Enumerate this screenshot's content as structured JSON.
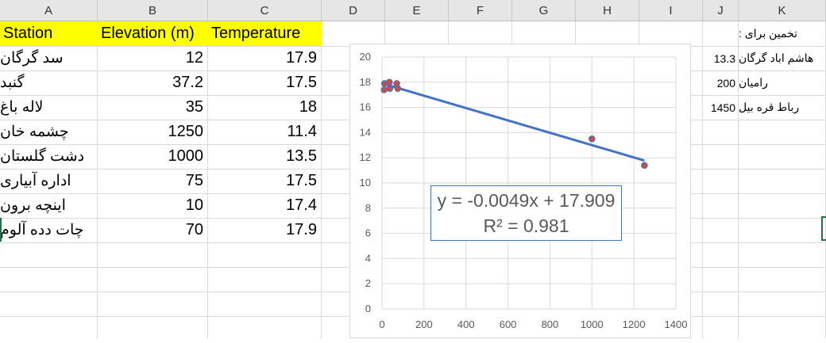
{
  "columns": [
    "A",
    "B",
    "C",
    "D",
    "E",
    "F",
    "G",
    "H",
    "I",
    "J",
    "K"
  ],
  "headers": {
    "station": "Station",
    "elevation": "Elevation (m)",
    "temperature": "Temperature"
  },
  "rows": [
    {
      "station": "سد گرگان",
      "elevation": "12",
      "temperature": "17.9"
    },
    {
      "station": "گنبد",
      "elevation": "37.2",
      "temperature": "17.5"
    },
    {
      "station": "لاله باغ",
      "elevation": "35",
      "temperature": "18"
    },
    {
      "station": "چشمه خان",
      "elevation": "1250",
      "temperature": "11.4"
    },
    {
      "station": "دشت گلستان",
      "elevation": "1000",
      "temperature": "13.5"
    },
    {
      "station": "اداره آبیاری",
      "elevation": "75",
      "temperature": "17.5"
    },
    {
      "station": "اینچه برون",
      "elevation": "10",
      "temperature": "17.4"
    },
    {
      "station": "چات دده آلوم",
      "elevation": "70",
      "temperature": "17.9"
    }
  ],
  "estimate": {
    "title": "تخمین برای :",
    "items": [
      {
        "value": "13.3",
        "label": "هاشم اباد گرگان"
      },
      {
        "value": "200",
        "label": "رامیان"
      },
      {
        "value": "1450",
        "label": "رباط قره بیل"
      }
    ]
  },
  "chart_data": {
    "type": "scatter",
    "x": [
      12,
      37.2,
      35,
      1250,
      1000,
      75,
      10,
      70
    ],
    "y": [
      17.9,
      17.5,
      18,
      11.4,
      13.5,
      17.5,
      17.4,
      17.9
    ],
    "xlim": [
      0,
      1400
    ],
    "ylim": [
      0,
      20
    ],
    "xticks": [
      0,
      200,
      400,
      600,
      800,
      1000,
      1200,
      1400
    ],
    "yticks": [
      0,
      2,
      4,
      6,
      8,
      10,
      12,
      14,
      16,
      18,
      20
    ],
    "trendline": {
      "slope": -0.0049,
      "intercept": 17.909,
      "x_range": [
        10,
        1250
      ]
    },
    "equation": "y = -0.0049x + 17.909",
    "r2": "R² = 0.981",
    "grid": true,
    "marker_color": "#c0504d",
    "marker_edge": "#4472c4",
    "line_color": "#4472c4"
  }
}
